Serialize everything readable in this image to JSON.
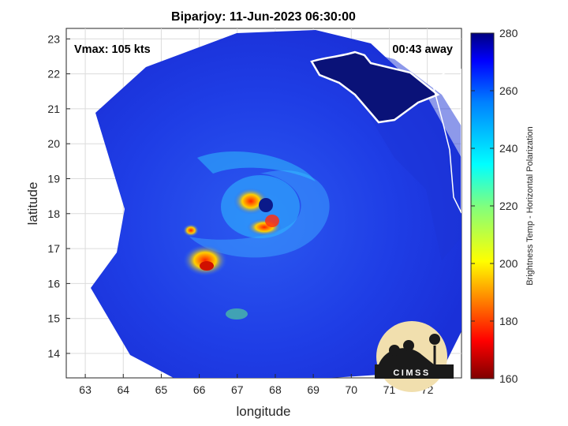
{
  "chart_data": {
    "type": "heatmap",
    "title": "Biparjoy: 11-Jun-2023 06:30:00",
    "xlabel": "longitude",
    "ylabel": "latitude",
    "xlim": [
      62.5,
      72.9
    ],
    "ylim": [
      13.3,
      23.3
    ],
    "x_ticks": [
      "63",
      "64",
      "65",
      "66",
      "67",
      "68",
      "69",
      "70",
      "71",
      "72"
    ],
    "y_ticks": [
      "14",
      "15",
      "16",
      "17",
      "18",
      "19",
      "20",
      "21",
      "22",
      "23"
    ],
    "grid": true,
    "annotations": {
      "vmax": "Vmax: 105 kts",
      "time_away": "00:43 away"
    },
    "colorbar": {
      "label": "Brightness Temp - Horizontal Polarization",
      "range": [
        160,
        280
      ],
      "ticks": [
        "280",
        "260",
        "240",
        "220",
        "200",
        "180",
        "160"
      ],
      "colormap": "jet"
    },
    "storm_center": {
      "lon": 67.4,
      "lat": 18.4
    },
    "swath_edge_samples": [
      {
        "lon": 63.0,
        "lat": 20.9
      },
      {
        "lon": 63.9,
        "lat": 18.7
      },
      {
        "lon": 63.0,
        "lat": 15.9
      },
      {
        "lon": 66.0,
        "lat": 13.3
      },
      {
        "lon": 69.0,
        "lat": 13.3
      },
      {
        "lon": 72.9,
        "lat": 15.6
      },
      {
        "lon": 72.9,
        "lat": 20.5
      },
      {
        "lon": 70.5,
        "lat": 23.0
      },
      {
        "lon": 66.2,
        "lat": 23.3
      }
    ],
    "logo": "CIMSS"
  },
  "colors": {
    "cold_core": "#b00000",
    "warm_background": "#1a35e0",
    "coast": "#ffffff"
  }
}
